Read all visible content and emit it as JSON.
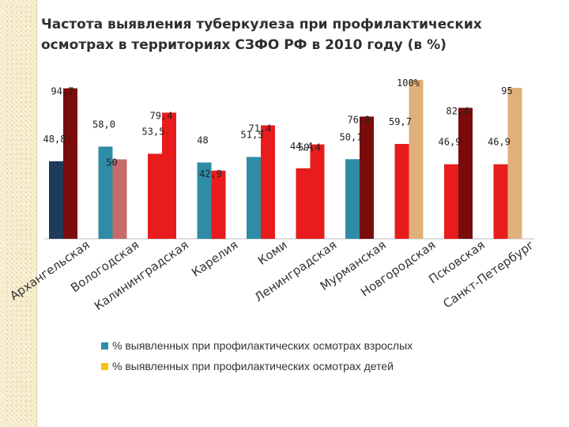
{
  "title": "Частота выявления туберкулеза при профилактических осмотрах в территориях СЗФО РФ в 2010 году (в %)",
  "chart_data": {
    "type": "bar",
    "title": "Частота выявления туберкулеза при профилактических осмотрах в территориях СЗФО РФ в 2010 году (в %)",
    "categories": [
      "Архангельская",
      "Вологодская",
      "Калининградская",
      "Карелия",
      "Коми",
      "Ленинградская",
      "Мурманская",
      "Новгородская",
      "Псковская",
      "Санкт-Петербург"
    ],
    "series": [
      {
        "name": "% выявленных при профилактических осмотрах взрослых",
        "values": [
          48.8,
          58.0,
          53.5,
          48,
          51.5,
          44.4,
          50.1,
          59.7,
          46.9,
          46.9
        ],
        "labels": [
          "48,8",
          "58,0",
          "53,5",
          "48",
          "51,5",
          "44,4",
          "50,1",
          "59,7",
          "46,9",
          "46,9"
        ],
        "colors": [
          "#1f3a5a",
          "#2e8ca6",
          "#e81c1c",
          "#2e8ca6",
          "#2e8ca6",
          "#e81c1c",
          "#2e8ca6",
          "#e81c1c",
          "#e81c1c",
          "#e81c1c"
        ]
      },
      {
        "name": "% выявленных при профилактических осмотрах детей",
        "values": [
          94.7,
          50,
          79.4,
          42.9,
          71.4,
          59.4,
          76.9,
          100,
          82.4,
          95
        ],
        "labels": [
          "94,7",
          "50",
          "79,4",
          "42,9",
          "71,4",
          "59,4",
          "76,9",
          "100%",
          "82,4",
          "95"
        ],
        "colors": [
          "#7a0c0c",
          "#c86b6b",
          "#e81c1c",
          "#e81c1c",
          "#e81c1c",
          "#e81c1c",
          "#7a0c0c",
          "#e0b07a",
          "#7a0c0c",
          "#e0b07a"
        ]
      }
    ],
    "legend": [
      "% выявленных при профилактических осмотрах взрослых",
      "% выявленных при профилактических осмотрах детей"
    ],
    "legend_colors": [
      "#2e8ca6",
      "#f2c218"
    ],
    "legend_position": "bottom",
    "ylim": [
      0,
      100
    ],
    "grid": false,
    "xlabel": "",
    "ylabel": ""
  }
}
